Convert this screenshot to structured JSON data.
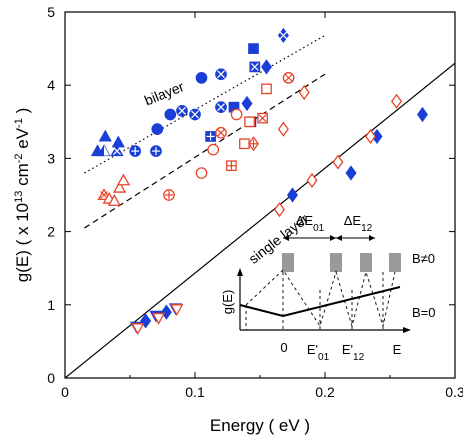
{
  "chart_data": {
    "type": "scatter",
    "xlabel": "Energy ( eV )",
    "ylabel": "g(E) ( x 10<sup>13</sup> cm<sup>-2</sup> eV<sup>-1</sup> )",
    "ylabel_parts": [
      "g(E) ( x 10",
      "13",
      " cm",
      "-2",
      " eV",
      "-1",
      " )"
    ],
    "xlim": [
      0,
      0.3
    ],
    "ylim": [
      0,
      5
    ],
    "xticks": [
      "0",
      "0.1",
      "0.2",
      "0.3"
    ],
    "yticks": [
      "0",
      "1",
      "2",
      "3",
      "4",
      "5"
    ],
    "xtick_values": [
      0,
      0.1,
      0.2,
      0.3
    ],
    "ytick_values": [
      0,
      1,
      2,
      3,
      4,
      5
    ],
    "colors": {
      "blue": "#1a3fd6",
      "red": "#e8442a",
      "black": "#000000"
    },
    "series": [
      {
        "color": "#1a3fd6",
        "points": [
          {
            "x": 0.025,
            "y": 3.1,
            "m": "tri"
          },
          {
            "x": 0.03,
            "y": 3.1,
            "m": "tri-half"
          },
          {
            "x": 0.031,
            "y": 3.3,
            "m": "tri"
          },
          {
            "x": 0.04,
            "y": 3.1,
            "m": "tri-x"
          },
          {
            "x": 0.041,
            "y": 3.22,
            "m": "tri"
          },
          {
            "x": 0.054,
            "y": 3.1,
            "m": "circ-plus"
          },
          {
            "x": 0.07,
            "y": 3.1,
            "m": "circ-plus"
          },
          {
            "x": 0.071,
            "y": 3.4,
            "m": "circ"
          },
          {
            "x": 0.081,
            "y": 3.6,
            "m": "circ"
          },
          {
            "x": 0.09,
            "y": 3.65,
            "m": "circ-x"
          },
          {
            "x": 0.1,
            "y": 3.6,
            "m": "circ-x"
          },
          {
            "x": 0.105,
            "y": 4.1,
            "m": "circ"
          },
          {
            "x": 0.112,
            "y": 3.3,
            "m": "sq-plus"
          },
          {
            "x": 0.12,
            "y": 3.7,
            "m": "circ-x"
          },
          {
            "x": 0.12,
            "y": 4.15,
            "m": "circ-x"
          },
          {
            "x": 0.13,
            "y": 3.7,
            "m": "sq"
          },
          {
            "x": 0.14,
            "y": 3.75,
            "m": "diam"
          },
          {
            "x": 0.143,
            "y": 3.5,
            "m": "sq-plus"
          },
          {
            "x": 0.145,
            "y": 4.5,
            "m": "sq"
          },
          {
            "x": 0.146,
            "y": 4.25,
            "m": "sq-x"
          },
          {
            "x": 0.155,
            "y": 4.25,
            "m": "diam"
          },
          {
            "x": 0.168,
            "y": 4.68,
            "m": "diam-x"
          }
        ]
      },
      {
        "color": "#e8442a",
        "points": [
          {
            "x": 0.03,
            "y": 2.5,
            "m": "tri-o-x"
          },
          {
            "x": 0.034,
            "y": 2.45,
            "m": "tri-o"
          },
          {
            "x": 0.038,
            "y": 2.42,
            "m": "tri-o"
          },
          {
            "x": 0.042,
            "y": 2.6,
            "m": "tri-o"
          },
          {
            "x": 0.045,
            "y": 2.7,
            "m": "tri-o"
          },
          {
            "x": 0.08,
            "y": 2.5,
            "m": "circ-o-plus"
          },
          {
            "x": 0.105,
            "y": 2.8,
            "m": "circ-o"
          },
          {
            "x": 0.114,
            "y": 3.12,
            "m": "circ-o"
          },
          {
            "x": 0.12,
            "y": 3.35,
            "m": "circ-o-x"
          },
          {
            "x": 0.128,
            "y": 2.9,
            "m": "sq-o-plus"
          },
          {
            "x": 0.132,
            "y": 3.6,
            "m": "circ-o"
          },
          {
            "x": 0.138,
            "y": 3.2,
            "m": "sq-o"
          },
          {
            "x": 0.142,
            "y": 3.5,
            "m": "sq-o"
          },
          {
            "x": 0.145,
            "y": 3.2,
            "m": "diam-o-plus"
          },
          {
            "x": 0.152,
            "y": 3.55,
            "m": "sq-o-x"
          },
          {
            "x": 0.155,
            "y": 3.95,
            "m": "sq-o"
          },
          {
            "x": 0.168,
            "y": 3.4,
            "m": "diam-o"
          },
          {
            "x": 0.172,
            "y": 4.1,
            "m": "circ-o-x"
          },
          {
            "x": 0.184,
            "y": 3.9,
            "m": "diam-o"
          }
        ]
      },
      {
        "color": "#1a3fd6",
        "points": [
          {
            "x": 0.055,
            "y": 0.7,
            "m": "tri-down"
          },
          {
            "x": 0.062,
            "y": 0.78,
            "m": "diam"
          },
          {
            "x": 0.07,
            "y": 0.85,
            "m": "tri-down"
          },
          {
            "x": 0.078,
            "y": 0.9,
            "m": "diam"
          },
          {
            "x": 0.085,
            "y": 0.95,
            "m": "tri-down"
          },
          {
            "x": 0.175,
            "y": 2.5,
            "m": "diam"
          },
          {
            "x": 0.22,
            "y": 2.8,
            "m": "diam"
          },
          {
            "x": 0.24,
            "y": 3.3,
            "m": "diam"
          },
          {
            "x": 0.275,
            "y": 3.6,
            "m": "diam"
          }
        ]
      },
      {
        "color": "#e8442a",
        "points": [
          {
            "x": 0.056,
            "y": 0.68,
            "m": "tri-down-o"
          },
          {
            "x": 0.072,
            "y": 0.82,
            "m": "tri-down-o"
          },
          {
            "x": 0.086,
            "y": 0.94,
            "m": "tri-down-o"
          },
          {
            "x": 0.165,
            "y": 2.3,
            "m": "diam-o"
          },
          {
            "x": 0.19,
            "y": 2.7,
            "m": "diam-o"
          },
          {
            "x": 0.21,
            "y": 2.95,
            "m": "diam-o"
          },
          {
            "x": 0.235,
            "y": 3.3,
            "m": "diam-o"
          },
          {
            "x": 0.255,
            "y": 3.78,
            "m": "diam-o"
          }
        ]
      }
    ],
    "fit_lines": [
      {
        "style": "dotted",
        "x": [
          0.015,
          0.2
        ],
        "y": [
          2.8,
          4.68
        ]
      },
      {
        "style": "dashed",
        "x": [
          0.015,
          0.2
        ],
        "y": [
          2.05,
          4.15
        ]
      },
      {
        "style": "solid",
        "x": [
          0,
          0.3
        ],
        "y": [
          0,
          4.3
        ]
      }
    ],
    "annotations": [
      {
        "text": "bilayer",
        "x": 0.063,
        "y": 3.72,
        "rotate": -22
      },
      {
        "text": "single layer",
        "x": 0.145,
        "y": 1.55,
        "rotate": -38
      }
    ],
    "inset": {
      "ylabel": "g(E)",
      "xlabels": [
        "0",
        "E'01",
        "E'12",
        "E"
      ],
      "top_labels": [
        "ΔE01",
        "ΔE12"
      ],
      "right_labels": [
        "B≠0",
        "B=0"
      ]
    }
  }
}
